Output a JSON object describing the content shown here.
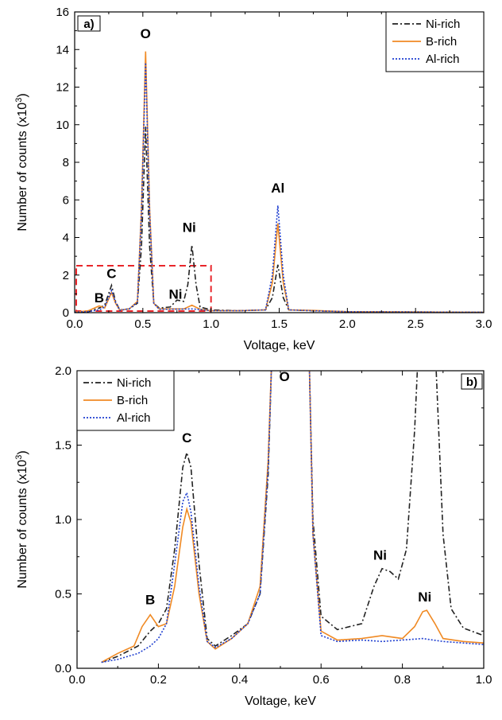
{
  "chart_data": [
    {
      "panel": "a)",
      "type": "line",
      "xlabel": "Voltage, keV",
      "ylabel_main": "Number of counts (x10",
      "ylabel_exp": "3",
      "ylabel_end": ")",
      "xlim": [
        0,
        3.0
      ],
      "ylim": [
        0,
        16
      ],
      "xticks": [
        0.0,
        0.5,
        1.0,
        1.5,
        2.0,
        2.5,
        3.0
      ],
      "xtick_labels": [
        "0.0",
        "0.5",
        "1.0",
        "1.5",
        "2.0",
        "2.5",
        "3.0"
      ],
      "yticks": [
        0,
        2,
        4,
        6,
        8,
        10,
        12,
        14,
        16
      ],
      "ytick_labels": [
        "0",
        "2",
        "4",
        "6",
        "8",
        "10",
        "12",
        "14",
        "16"
      ],
      "legend_position": "top-right",
      "grid": false,
      "inset_box": {
        "x": [
          0.0,
          1.0
        ],
        "y": [
          0,
          2.5
        ],
        "color": "#e8262b"
      },
      "series": [
        {
          "name": "Ni-rich",
          "color": "#222222",
          "dash": "7,3,2,3",
          "points": [
            [
              0,
              0.02
            ],
            [
              0.1,
              0.05
            ],
            [
              0.18,
              0.25
            ],
            [
              0.22,
              0.4
            ],
            [
              0.27,
              1.45
            ],
            [
              0.3,
              0.6
            ],
            [
              0.33,
              0.15
            ],
            [
              0.4,
              0.2
            ],
            [
              0.46,
              0.5
            ],
            [
              0.49,
              3.5
            ],
            [
              0.52,
              9.9
            ],
            [
              0.55,
              3.5
            ],
            [
              0.58,
              0.5
            ],
            [
              0.62,
              0.25
            ],
            [
              0.7,
              0.3
            ],
            [
              0.75,
              0.67
            ],
            [
              0.8,
              0.6
            ],
            [
              0.83,
              1.5
            ],
            [
              0.86,
              3.6
            ],
            [
              0.89,
              1.5
            ],
            [
              0.92,
              0.3
            ],
            [
              1.0,
              0.15
            ],
            [
              1.2,
              0.1
            ],
            [
              1.4,
              0.15
            ],
            [
              1.45,
              0.8
            ],
            [
              1.49,
              2.55
            ],
            [
              1.53,
              0.8
            ],
            [
              1.57,
              0.15
            ],
            [
              1.75,
              0.1
            ],
            [
              2.0,
              0.05
            ],
            [
              3.0,
              0.02
            ]
          ]
        },
        {
          "name": "B-rich",
          "color": "#f08a24",
          "dash": "",
          "points": [
            [
              0,
              0.02
            ],
            [
              0.1,
              0.1
            ],
            [
              0.18,
              0.36
            ],
            [
              0.22,
              0.25
            ],
            [
              0.27,
              1.07
            ],
            [
              0.3,
              0.5
            ],
            [
              0.33,
              0.13
            ],
            [
              0.4,
              0.2
            ],
            [
              0.46,
              0.6
            ],
            [
              0.49,
              5.5
            ],
            [
              0.52,
              13.9
            ],
            [
              0.55,
              5.5
            ],
            [
              0.58,
              0.5
            ],
            [
              0.62,
              0.2
            ],
            [
              0.8,
              0.2
            ],
            [
              0.86,
              0.4
            ],
            [
              0.92,
              0.18
            ],
            [
              1.0,
              0.1
            ],
            [
              1.2,
              0.1
            ],
            [
              1.4,
              0.15
            ],
            [
              1.45,
              1.6
            ],
            [
              1.49,
              4.75
            ],
            [
              1.53,
              1.6
            ],
            [
              1.57,
              0.15
            ],
            [
              1.75,
              0.12
            ],
            [
              2.0,
              0.05
            ],
            [
              3.0,
              0.02
            ]
          ]
        },
        {
          "name": "Al-rich",
          "color": "#1f3fd0",
          "dash": "2,2",
          "points": [
            [
              0,
              0.02
            ],
            [
              0.1,
              0.06
            ],
            [
              0.18,
              0.15
            ],
            [
              0.22,
              0.3
            ],
            [
              0.27,
              1.18
            ],
            [
              0.3,
              0.55
            ],
            [
              0.33,
              0.13
            ],
            [
              0.4,
              0.2
            ],
            [
              0.46,
              0.55
            ],
            [
              0.49,
              5.3
            ],
            [
              0.52,
              13.3
            ],
            [
              0.55,
              5.3
            ],
            [
              0.58,
              0.5
            ],
            [
              0.62,
              0.18
            ],
            [
              0.8,
              0.19
            ],
            [
              0.86,
              0.2
            ],
            [
              0.92,
              0.17
            ],
            [
              1.0,
              0.1
            ],
            [
              1.2,
              0.1
            ],
            [
              1.4,
              0.15
            ],
            [
              1.45,
              2.0
            ],
            [
              1.49,
              5.7
            ],
            [
              1.53,
              2.0
            ],
            [
              1.57,
              0.15
            ],
            [
              1.75,
              0.1
            ],
            [
              2.0,
              0.05
            ],
            [
              3.0,
              0.02
            ]
          ]
        }
      ],
      "annotations": [
        {
          "text": "O",
          "x": 0.52,
          "y": 14.6
        },
        {
          "text": "Ni",
          "x": 0.84,
          "y": 4.3
        },
        {
          "text": "Ni",
          "x": 0.74,
          "y": 0.75
        },
        {
          "text": "Al",
          "x": 1.49,
          "y": 6.4
        },
        {
          "text": "C",
          "x": 0.27,
          "y": 1.85
        },
        {
          "text": "B",
          "x": 0.18,
          "y": 0.55
        }
      ]
    },
    {
      "panel": "b)",
      "type": "line",
      "xlabel": "Voltage, keV",
      "ylabel_main": "Number of counts (x10",
      "ylabel_exp": "3",
      "ylabel_end": ")",
      "xlim": [
        0,
        1.0
      ],
      "ylim": [
        0,
        2.0
      ],
      "xticks": [
        0.0,
        0.2,
        0.4,
        0.6,
        0.8,
        1.0
      ],
      "xtick_labels": [
        "0.0",
        "0.2",
        "0.4",
        "0.6",
        "0.8",
        "1.0"
      ],
      "yticks": [
        0.0,
        0.5,
        1.0,
        1.5,
        2.0
      ],
      "ytick_labels": [
        "0.0",
        "0.5",
        "1.0",
        "1.5",
        "2.0"
      ],
      "legend_position": "top-left",
      "grid": false,
      "series": [
        {
          "name": "Ni-rich",
          "color": "#222222",
          "dash": "7,3,2,3",
          "points": [
            [
              0.06,
              0.04
            ],
            [
              0.1,
              0.08
            ],
            [
              0.15,
              0.15
            ],
            [
              0.18,
              0.25
            ],
            [
              0.2,
              0.3
            ],
            [
              0.22,
              0.4
            ],
            [
              0.24,
              0.8
            ],
            [
              0.26,
              1.35
            ],
            [
              0.27,
              1.45
            ],
            [
              0.28,
              1.35
            ],
            [
              0.3,
              0.7
            ],
            [
              0.32,
              0.2
            ],
            [
              0.34,
              0.15
            ],
            [
              0.38,
              0.22
            ],
            [
              0.42,
              0.3
            ],
            [
              0.45,
              0.5
            ],
            [
              0.47,
              1.3
            ],
            [
              0.48,
              2.2
            ],
            [
              0.57,
              2.2
            ],
            [
              0.58,
              1.0
            ],
            [
              0.6,
              0.35
            ],
            [
              0.64,
              0.26
            ],
            [
              0.7,
              0.3
            ],
            [
              0.73,
              0.55
            ],
            [
              0.75,
              0.67
            ],
            [
              0.77,
              0.65
            ],
            [
              0.79,
              0.6
            ],
            [
              0.81,
              0.8
            ],
            [
              0.83,
              1.6
            ],
            [
              0.84,
              2.2
            ],
            [
              0.88,
              2.2
            ],
            [
              0.9,
              0.9
            ],
            [
              0.92,
              0.4
            ],
            [
              0.95,
              0.27
            ],
            [
              1.0,
              0.22
            ]
          ]
        },
        {
          "name": "B-rich",
          "color": "#f08a24",
          "dash": "",
          "points": [
            [
              0.06,
              0.04
            ],
            [
              0.1,
              0.1
            ],
            [
              0.14,
              0.15
            ],
            [
              0.16,
              0.28
            ],
            [
              0.18,
              0.36
            ],
            [
              0.2,
              0.28
            ],
            [
              0.22,
              0.3
            ],
            [
              0.24,
              0.55
            ],
            [
              0.26,
              0.95
            ],
            [
              0.27,
              1.07
            ],
            [
              0.28,
              0.98
            ],
            [
              0.3,
              0.5
            ],
            [
              0.32,
              0.18
            ],
            [
              0.34,
              0.13
            ],
            [
              0.38,
              0.2
            ],
            [
              0.42,
              0.3
            ],
            [
              0.45,
              0.55
            ],
            [
              0.47,
              1.4
            ],
            [
              0.48,
              2.2
            ],
            [
              0.57,
              2.2
            ],
            [
              0.58,
              0.9
            ],
            [
              0.6,
              0.25
            ],
            [
              0.64,
              0.19
            ],
            [
              0.7,
              0.2
            ],
            [
              0.75,
              0.22
            ],
            [
              0.8,
              0.2
            ],
            [
              0.83,
              0.28
            ],
            [
              0.85,
              0.38
            ],
            [
              0.86,
              0.39
            ],
            [
              0.88,
              0.3
            ],
            [
              0.9,
              0.2
            ],
            [
              0.95,
              0.18
            ],
            [
              1.0,
              0.17
            ]
          ]
        },
        {
          "name": "Al-rich",
          "color": "#1f3fd0",
          "dash": "2,2",
          "points": [
            [
              0.06,
              0.04
            ],
            [
              0.1,
              0.06
            ],
            [
              0.15,
              0.1
            ],
            [
              0.18,
              0.15
            ],
            [
              0.2,
              0.2
            ],
            [
              0.22,
              0.3
            ],
            [
              0.24,
              0.7
            ],
            [
              0.26,
              1.12
            ],
            [
              0.27,
              1.18
            ],
            [
              0.28,
              1.05
            ],
            [
              0.3,
              0.55
            ],
            [
              0.32,
              0.18
            ],
            [
              0.34,
              0.14
            ],
            [
              0.38,
              0.2
            ],
            [
              0.42,
              0.3
            ],
            [
              0.45,
              0.5
            ],
            [
              0.47,
              1.35
            ],
            [
              0.48,
              2.2
            ],
            [
              0.57,
              2.2
            ],
            [
              0.58,
              0.9
            ],
            [
              0.6,
              0.22
            ],
            [
              0.64,
              0.18
            ],
            [
              0.7,
              0.19
            ],
            [
              0.75,
              0.18
            ],
            [
              0.8,
              0.19
            ],
            [
              0.85,
              0.2
            ],
            [
              0.9,
              0.18
            ],
            [
              0.95,
              0.17
            ],
            [
              1.0,
              0.16
            ]
          ]
        }
      ],
      "annotations": [
        {
          "text": "C",
          "x": 0.27,
          "y": 1.52
        },
        {
          "text": "O",
          "x": 0.51,
          "y": 1.93
        },
        {
          "text": "B",
          "x": 0.18,
          "y": 0.43
        },
        {
          "text": "Ni",
          "x": 0.745,
          "y": 0.73
        },
        {
          "text": "Ni",
          "x": 0.855,
          "y": 0.45
        }
      ]
    }
  ]
}
